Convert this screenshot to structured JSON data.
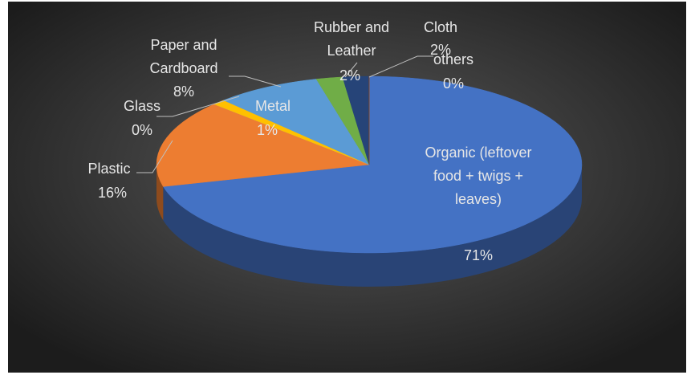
{
  "chart_data": {
    "type": "pie",
    "categories": [
      "Organic (leftover food + twigs + leaves)",
      "Plastic",
      "Glass",
      "Metal",
      "Paper and Cardboard",
      "Rubber and Leather",
      "Cloth",
      "others"
    ],
    "values": [
      71,
      16,
      0,
      1,
      8,
      2,
      2,
      0
    ],
    "value_labels": [
      "71%",
      "16%",
      "0%",
      "1%",
      "8%",
      "2%",
      "2%",
      "0%"
    ],
    "colors": [
      "#4472c4",
      "#ed7d31",
      "#a5a5a5",
      "#ffc000",
      "#5b9bd5",
      "#70ad47",
      "#264478",
      "#9e480e"
    ]
  }
}
